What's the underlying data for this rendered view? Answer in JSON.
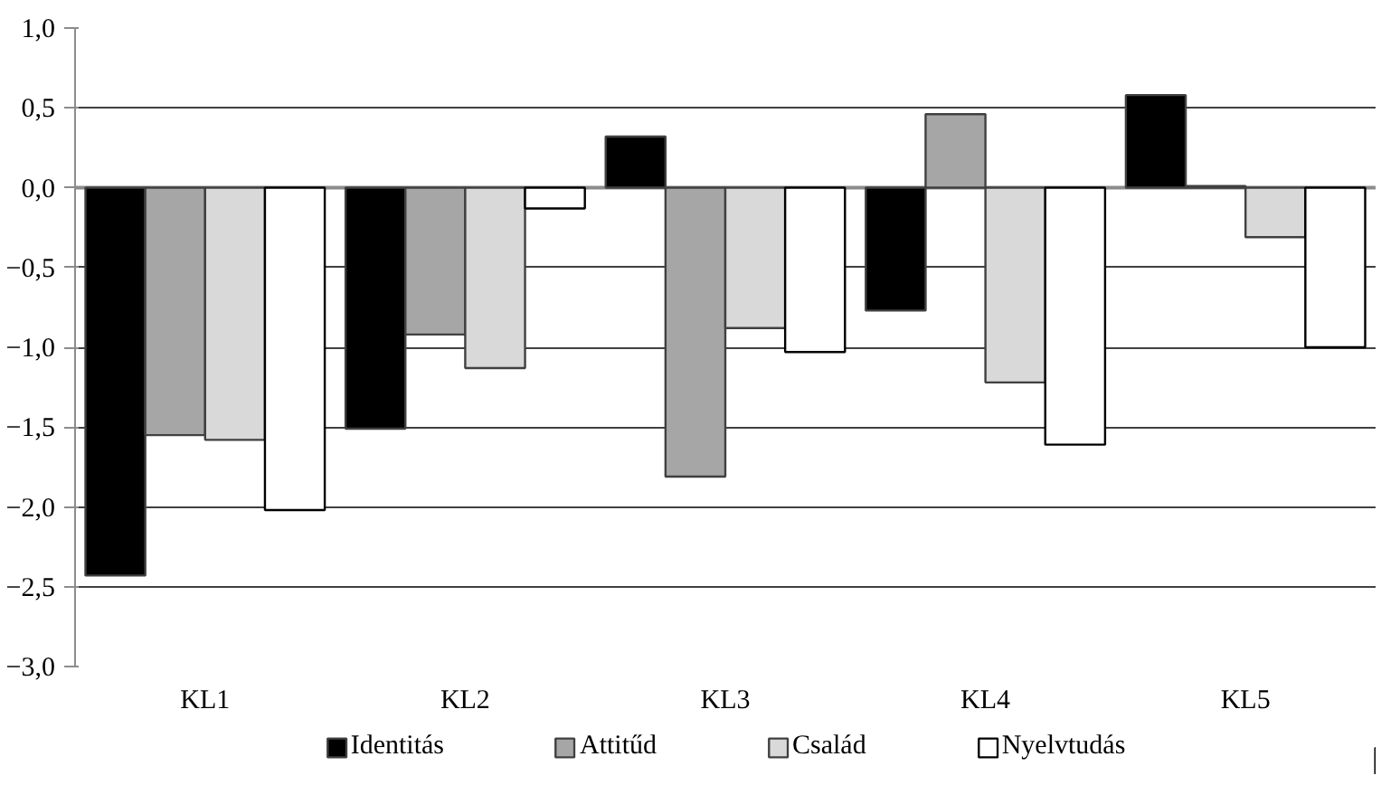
{
  "chart_data": {
    "type": "bar",
    "categories": [
      "KL1",
      "KL2",
      "KL3",
      "KL4",
      "KL5"
    ],
    "series": [
      {
        "name": "Identitás",
        "color": "#000000",
        "values": [
          -2.43,
          -1.51,
          0.32,
          -0.77,
          0.58
        ]
      },
      {
        "name": "Attitűd",
        "color": "#a6a6a6",
        "values": [
          -1.55,
          -0.92,
          -1.81,
          0.46,
          0.01
        ]
      },
      {
        "name": "Család",
        "color": "#d9d9d9",
        "values": [
          -1.58,
          -1.13,
          -0.88,
          -1.22,
          -0.31
        ]
      },
      {
        "name": "Nyelvtudás",
        "color": "#ffffff",
        "values": [
          -2.02,
          -0.13,
          -1.03,
          -1.61,
          -1.0
        ]
      }
    ],
    "ylim": [
      -3.0,
      1.0
    ],
    "yticks": [
      {
        "value": -3.0,
        "label": "−3,0"
      },
      {
        "value": -2.5,
        "label": "−2,5"
      },
      {
        "value": -2.0,
        "label": "−2,0"
      },
      {
        "value": -1.5,
        "label": "−1,5"
      },
      {
        "value": -1.0,
        "label": "−1,0"
      },
      {
        "value": -0.5,
        "label": "−0,5"
      },
      {
        "value": 0.0,
        "label": "0,0"
      },
      {
        "value": 0.5,
        "label": "0,5"
      },
      {
        "value": 1.0,
        "label": "1,0"
      }
    ],
    "grid": "y",
    "legend": "bottom"
  }
}
